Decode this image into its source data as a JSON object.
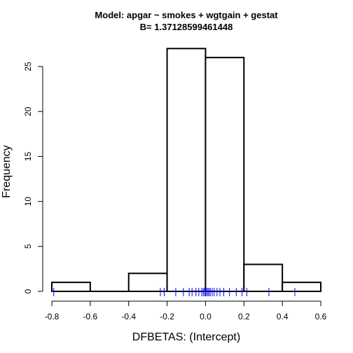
{
  "chart_data": {
    "type": "bar",
    "title": "Model: apgar ~ smokes + wgtgain + gestat",
    "subtitle": "B= 1.37128599461448",
    "xlabel": "DFBETAS: (Intercept)",
    "ylabel": "Frequency",
    "bins": [
      {
        "x0": -0.8,
        "x1": -0.6,
        "count": 1
      },
      {
        "x0": -0.6,
        "x1": -0.4,
        "count": 0
      },
      {
        "x0": -0.4,
        "x1": -0.2,
        "count": 2
      },
      {
        "x0": -0.2,
        "x1": 0.0,
        "count": 27
      },
      {
        "x0": 0.0,
        "x1": 0.2,
        "count": 26
      },
      {
        "x0": 0.2,
        "x1": 0.4,
        "count": 3
      },
      {
        "x0": 0.4,
        "x1": 0.6,
        "count": 1
      }
    ],
    "rug_values": [
      -0.79,
      -0.235,
      -0.215,
      -0.155,
      -0.115,
      -0.085,
      -0.07,
      -0.05,
      -0.035,
      -0.02,
      -0.012,
      -0.005,
      0.0,
      0.005,
      0.012,
      0.018,
      0.025,
      0.035,
      0.045,
      0.06,
      0.075,
      0.095,
      0.125,
      0.16,
      0.19,
      0.215,
      0.33,
      0.465
    ],
    "rug_color": "#0000ff",
    "xlim": [
      -0.8,
      0.6
    ],
    "ylim": [
      0,
      25
    ],
    "xticks": [
      "-0.8",
      "-0.6",
      "-0.4",
      "-0.2",
      "0.0",
      "0.2",
      "0.4",
      "0.6"
    ],
    "yticks": [
      "0",
      "5",
      "10",
      "15",
      "20",
      "25"
    ],
    "grid": false
  }
}
